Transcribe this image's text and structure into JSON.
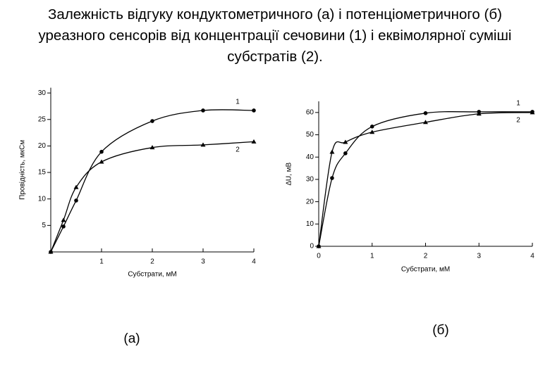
{
  "title": "Залежність відгуку кондуктометричного (а) і потенціометричного (б) уреазного сенсорів від концентрації сечовини (1) і еквімолярної суміші субстратів (2).",
  "chart_data": [
    {
      "type": "line",
      "caption": "(а)",
      "xlabel": "Субстрати, мМ",
      "ylabel": "Провідність, мкСм",
      "x": [
        0,
        0.25,
        0.5,
        1,
        2,
        3,
        4
      ],
      "xlim": [
        0,
        4
      ],
      "xticks": [
        1,
        2,
        3,
        4
      ],
      "ylim": [
        0,
        31
      ],
      "yticks": [
        5,
        10,
        15,
        20,
        25,
        30
      ],
      "series": [
        {
          "name": "1",
          "color": "#000000",
          "marker": "circle",
          "values": [
            0,
            4.8,
            9.7,
            18.9,
            24.7,
            26.7,
            26.7
          ]
        },
        {
          "name": "2",
          "color": "#000000",
          "marker": "triangle",
          "values": [
            0,
            6,
            12.2,
            17,
            19.7,
            20.2,
            20.8
          ]
        }
      ]
    },
    {
      "type": "line",
      "caption": "(б)",
      "xlabel": "Субстрати, мМ",
      "ylabel": "∆U, мВ",
      "x": [
        0,
        0.25,
        0.5,
        1,
        2,
        3,
        4
      ],
      "xlim": [
        0,
        4
      ],
      "xticks": [
        0,
        1,
        2,
        3,
        4
      ],
      "ylim": [
        0,
        65
      ],
      "yticks": [
        0,
        10,
        20,
        30,
        40,
        50,
        60
      ],
      "series": [
        {
          "name": "1",
          "color": "#000000",
          "marker": "circle",
          "values": [
            0,
            30.6,
            41.7,
            53.7,
            59.7,
            60.3,
            60.3
          ]
        },
        {
          "name": "2",
          "color": "#000000",
          "marker": "triangle",
          "values": [
            0,
            42.3,
            46.7,
            51.2,
            55.6,
            59.4,
            60
          ]
        }
      ]
    }
  ]
}
